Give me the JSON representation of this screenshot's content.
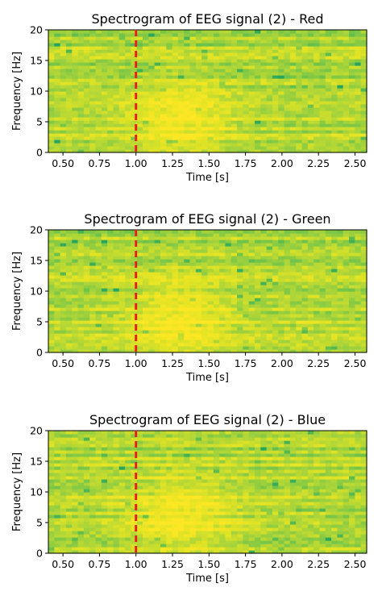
{
  "chart_data": [
    {
      "type": "heatmap",
      "title": "Spectrogram of EEG signal (2) - Red",
      "xlabel": "Time [s]",
      "ylabel": "Frequency [Hz]",
      "xlim": [
        0.4,
        2.58
      ],
      "ylim": [
        0,
        20
      ],
      "xticks": [
        "0.50",
        "0.75",
        "1.00",
        "1.25",
        "1.50",
        "1.75",
        "2.00",
        "2.25",
        "2.50"
      ],
      "yticks": [
        "0",
        "5",
        "10",
        "15",
        "20"
      ],
      "marker": {
        "x": 1.0,
        "color": "#e8221b",
        "style": "dashed"
      },
      "colormap": [
        "#27a55c",
        "#6cc24a",
        "#a9d43a",
        "#dfe325",
        "#fde724"
      ],
      "seed": 11
    },
    {
      "type": "heatmap",
      "title": "Spectrogram of EEG signal (2) - Green",
      "xlabel": "Time [s]",
      "ylabel": "Frequency [Hz]",
      "xlim": [
        0.4,
        2.58
      ],
      "ylim": [
        0,
        20
      ],
      "xticks": [
        "0.50",
        "0.75",
        "1.00",
        "1.25",
        "1.50",
        "1.75",
        "2.00",
        "2.25",
        "2.50"
      ],
      "yticks": [
        "0",
        "5",
        "10",
        "15",
        "20"
      ],
      "marker": {
        "x": 1.0,
        "color": "#e8221b",
        "style": "dashed"
      },
      "colormap": [
        "#27a55c",
        "#6cc24a",
        "#a9d43a",
        "#dfe325",
        "#fde724"
      ],
      "seed": 23
    },
    {
      "type": "heatmap",
      "title": "Spectrogram of EEG signal (2) - Blue",
      "xlabel": "Time [s]",
      "ylabel": "Frequency [Hz]",
      "xlim": [
        0.4,
        2.58
      ],
      "ylim": [
        0,
        20
      ],
      "xticks": [
        "0.50",
        "0.75",
        "1.00",
        "1.25",
        "1.50",
        "1.75",
        "2.00",
        "2.25",
        "2.50"
      ],
      "yticks": [
        "0",
        "5",
        "10",
        "15",
        "20"
      ],
      "marker": {
        "x": 1.0,
        "color": "#e8221b",
        "style": "dashed"
      },
      "colormap": [
        "#27a55c",
        "#6cc24a",
        "#a9d43a",
        "#dfe325",
        "#fde724"
      ],
      "seed": 37
    }
  ]
}
